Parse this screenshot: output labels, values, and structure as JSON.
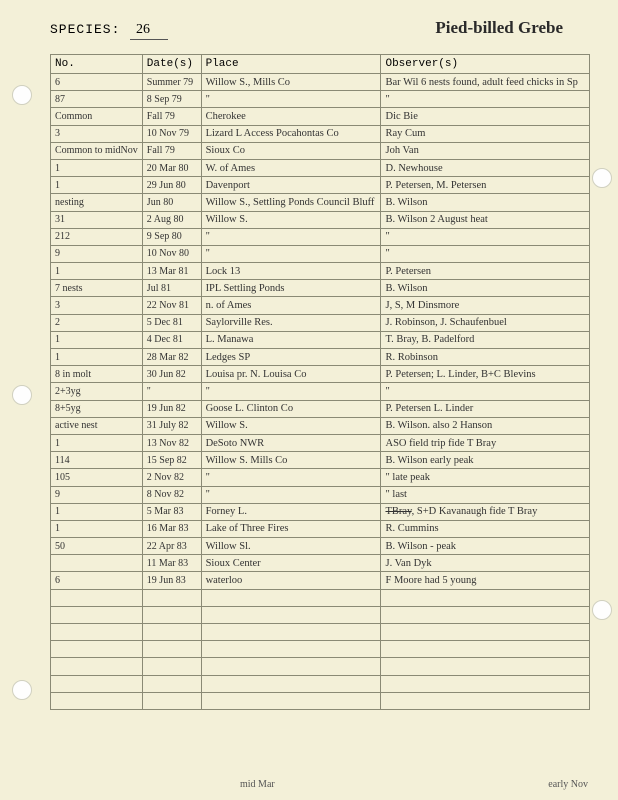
{
  "header": {
    "species_label": "SPECIES:",
    "species_number": "26",
    "bird_name": "Pied-billed Grebe"
  },
  "columns": [
    "No.",
    "Date(s)",
    "Place",
    "Observer(s)"
  ],
  "rows": [
    {
      "no": "6",
      "date": "Summer 79",
      "place": "Willow S., Mills Co",
      "obs": "Bar Wil   6 nests found, adult feed chicks in Sp"
    },
    {
      "no": "87",
      "date": "8 Sep 79",
      "place": "   \"",
      "obs": "   \""
    },
    {
      "no": "Common",
      "date": "Fall 79",
      "place": "Cherokee",
      "obs": "Dic Bie"
    },
    {
      "no": "3",
      "date": "10 Nov 79",
      "place": "Lizard L Access  Pocahontas Co",
      "obs": "Ray Cum"
    },
    {
      "no": "Common to midNov",
      "date": "Fall 79",
      "place": "Sioux Co",
      "obs": "Joh Van"
    },
    {
      "no": "1",
      "date": "20 Mar 80",
      "place": "W. of Ames",
      "obs": "D. Newhouse"
    },
    {
      "no": "1",
      "date": "29 Jun 80",
      "place": "Davenport",
      "obs": "P. Petersen, M. Petersen"
    },
    {
      "no": "nesting",
      "date": "Jun 80",
      "place": "Willow S., Settling Ponds Council Bluff",
      "obs": "B. Wilson"
    },
    {
      "no": "31",
      "date": "2 Aug 80",
      "place": "Willow S.",
      "obs": "B. Wilson        2 August heat"
    },
    {
      "no": "212",
      "date": "9 Sep 80",
      "place": "   \"",
      "obs": "   \""
    },
    {
      "no": "9",
      "date": "10 Nov 80",
      "place": "   \"",
      "obs": "   \""
    },
    {
      "no": "1",
      "date": "13 Mar 81",
      "place": "Lock 13",
      "obs": "P. Petersen"
    },
    {
      "no": "7 nests",
      "date": "Jul 81",
      "place": "IPL Settling Ponds",
      "obs": "B. Wilson"
    },
    {
      "no": "3",
      "date": "22 Nov 81",
      "place": "n. of Ames",
      "obs": "J, S, M  Dinsmore"
    },
    {
      "no": "2",
      "date": "5 Dec 81",
      "place": "Saylorville Res.",
      "obs": "J. Robinson, J. Schaufenbuel"
    },
    {
      "no": "1",
      "date": "4 Dec 81",
      "place": "L. Manawa",
      "obs": "T. Bray,  B. Padelford"
    },
    {
      "no": "1",
      "date": "28 Mar 82",
      "place": "Ledges SP",
      "obs": "R. Robinson"
    },
    {
      "no": "8 in molt",
      "date": "30 Jun 82",
      "place": "Louisa pr.      N. Louisa Co",
      "obs": "P. Petersen; L. Linder, B+C Blevins"
    },
    {
      "no": "2+3yg",
      "date": "  \"",
      "place": "  \"",
      "obs": "  \""
    },
    {
      "no": "8+5yg",
      "date": "19 Jun 82",
      "place": "Goose L.  Clinton Co",
      "obs": "P. Petersen   L. Linder"
    },
    {
      "no": "active nest",
      "date": "31 July 82",
      "place": "Willow S.",
      "obs": "B. Wilson.   also  2 Hanson"
    },
    {
      "no": "1",
      "date": "13 Nov 82",
      "place": "DeSoto NWR",
      "obs": "ASO field trip  fide T Bray"
    },
    {
      "no": "114",
      "date": "15 Sep 82",
      "place": "Willow S.    Mills Co",
      "obs": "B. Wilson     early peak"
    },
    {
      "no": "105",
      "date": "2 Nov 82",
      "place": "   \"",
      "obs": "   \"            late peak"
    },
    {
      "no": "9",
      "date": "8 Nov 82",
      "place": "   \"",
      "obs": "   \"            last"
    },
    {
      "no": "1",
      "date": "5 Mar 83",
      "place": "Forney L.",
      "obs": "TBray, S+D Kavanaugh  fide T Bray",
      "strike": true
    },
    {
      "no": "1",
      "date": "16 Mar 83",
      "place": "Lake of Three Fires",
      "obs": "R. Cummins"
    },
    {
      "no": "50",
      "date": "22 Apr 83",
      "place": "Willow Sl.",
      "obs": "B. Wilson  -  peak"
    },
    {
      "no": "",
      "date": "11 Mar 83",
      "place": "Sioux Center",
      "obs": "J. Van Dyk"
    },
    {
      "no": "6",
      "date": "19 Jun 83",
      "place": "waterloo",
      "obs": "F Moore   had 5 young",
      "class": "blue-ink"
    },
    {
      "no": "",
      "date": "",
      "place": "",
      "obs": ""
    },
    {
      "no": "",
      "date": "",
      "place": "",
      "obs": ""
    },
    {
      "no": "",
      "date": "",
      "place": "",
      "obs": ""
    },
    {
      "no": "",
      "date": "",
      "place": "",
      "obs": ""
    },
    {
      "no": "",
      "date": "",
      "place": "",
      "obs": ""
    },
    {
      "no": "",
      "date": "",
      "place": "",
      "obs": ""
    },
    {
      "no": "",
      "date": "",
      "place": "",
      "obs": ""
    }
  ],
  "footnotes": {
    "left": "mid Mar",
    "right": "early Nov"
  },
  "colors": {
    "page_bg": "#f3f0d8",
    "ink": "#333333",
    "blue_ink": "#2850a8",
    "grid": "#8a8a75"
  }
}
